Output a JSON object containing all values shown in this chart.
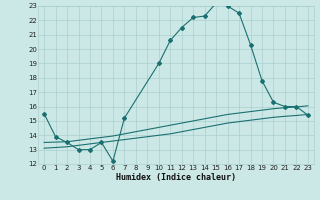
{
  "xlabel": "Humidex (Indice chaleur)",
  "bg_color": "#cce8e6",
  "grid_color": "#aacfcd",
  "line_color": "#1a7070",
  "xlim": [
    -0.5,
    23.5
  ],
  "ylim": [
    12,
    23
  ],
  "xticks": [
    0,
    1,
    2,
    3,
    4,
    5,
    6,
    7,
    8,
    9,
    10,
    11,
    12,
    13,
    14,
    15,
    16,
    17,
    18,
    19,
    20,
    21,
    22,
    23
  ],
  "yticks": [
    12,
    13,
    14,
    15,
    16,
    17,
    18,
    19,
    20,
    21,
    22,
    23
  ],
  "line1_x": [
    0,
    1,
    2,
    3,
    4,
    5,
    6,
    7,
    10,
    11,
    12,
    13,
    14,
    15,
    16,
    17,
    18,
    19,
    20,
    21,
    22,
    23
  ],
  "line1_y": [
    15.5,
    13.9,
    13.5,
    13.0,
    13.0,
    13.5,
    12.2,
    15.2,
    19.0,
    20.6,
    21.5,
    22.2,
    22.3,
    23.2,
    23.0,
    22.5,
    20.3,
    17.8,
    16.3,
    16.0,
    16.0,
    15.4
  ],
  "line2_x": [
    0,
    2,
    3,
    4,
    5,
    6,
    7,
    8,
    9,
    10,
    11,
    12,
    13,
    14,
    15,
    16,
    17,
    18,
    19,
    20,
    21,
    22,
    23
  ],
  "line2_y": [
    13.5,
    13.55,
    13.65,
    13.75,
    13.85,
    13.95,
    14.1,
    14.25,
    14.4,
    14.55,
    14.7,
    14.85,
    15.0,
    15.15,
    15.3,
    15.45,
    15.55,
    15.65,
    15.75,
    15.85,
    15.92,
    15.97,
    16.05
  ],
  "line3_x": [
    0,
    2,
    3,
    4,
    5,
    6,
    7,
    8,
    9,
    10,
    11,
    12,
    13,
    14,
    15,
    16,
    17,
    18,
    19,
    20,
    21,
    22,
    23
  ],
  "line3_y": [
    13.1,
    13.2,
    13.3,
    13.4,
    13.5,
    13.6,
    13.7,
    13.8,
    13.9,
    14.0,
    14.1,
    14.25,
    14.4,
    14.55,
    14.7,
    14.85,
    14.95,
    15.05,
    15.15,
    15.25,
    15.32,
    15.38,
    15.45
  ]
}
